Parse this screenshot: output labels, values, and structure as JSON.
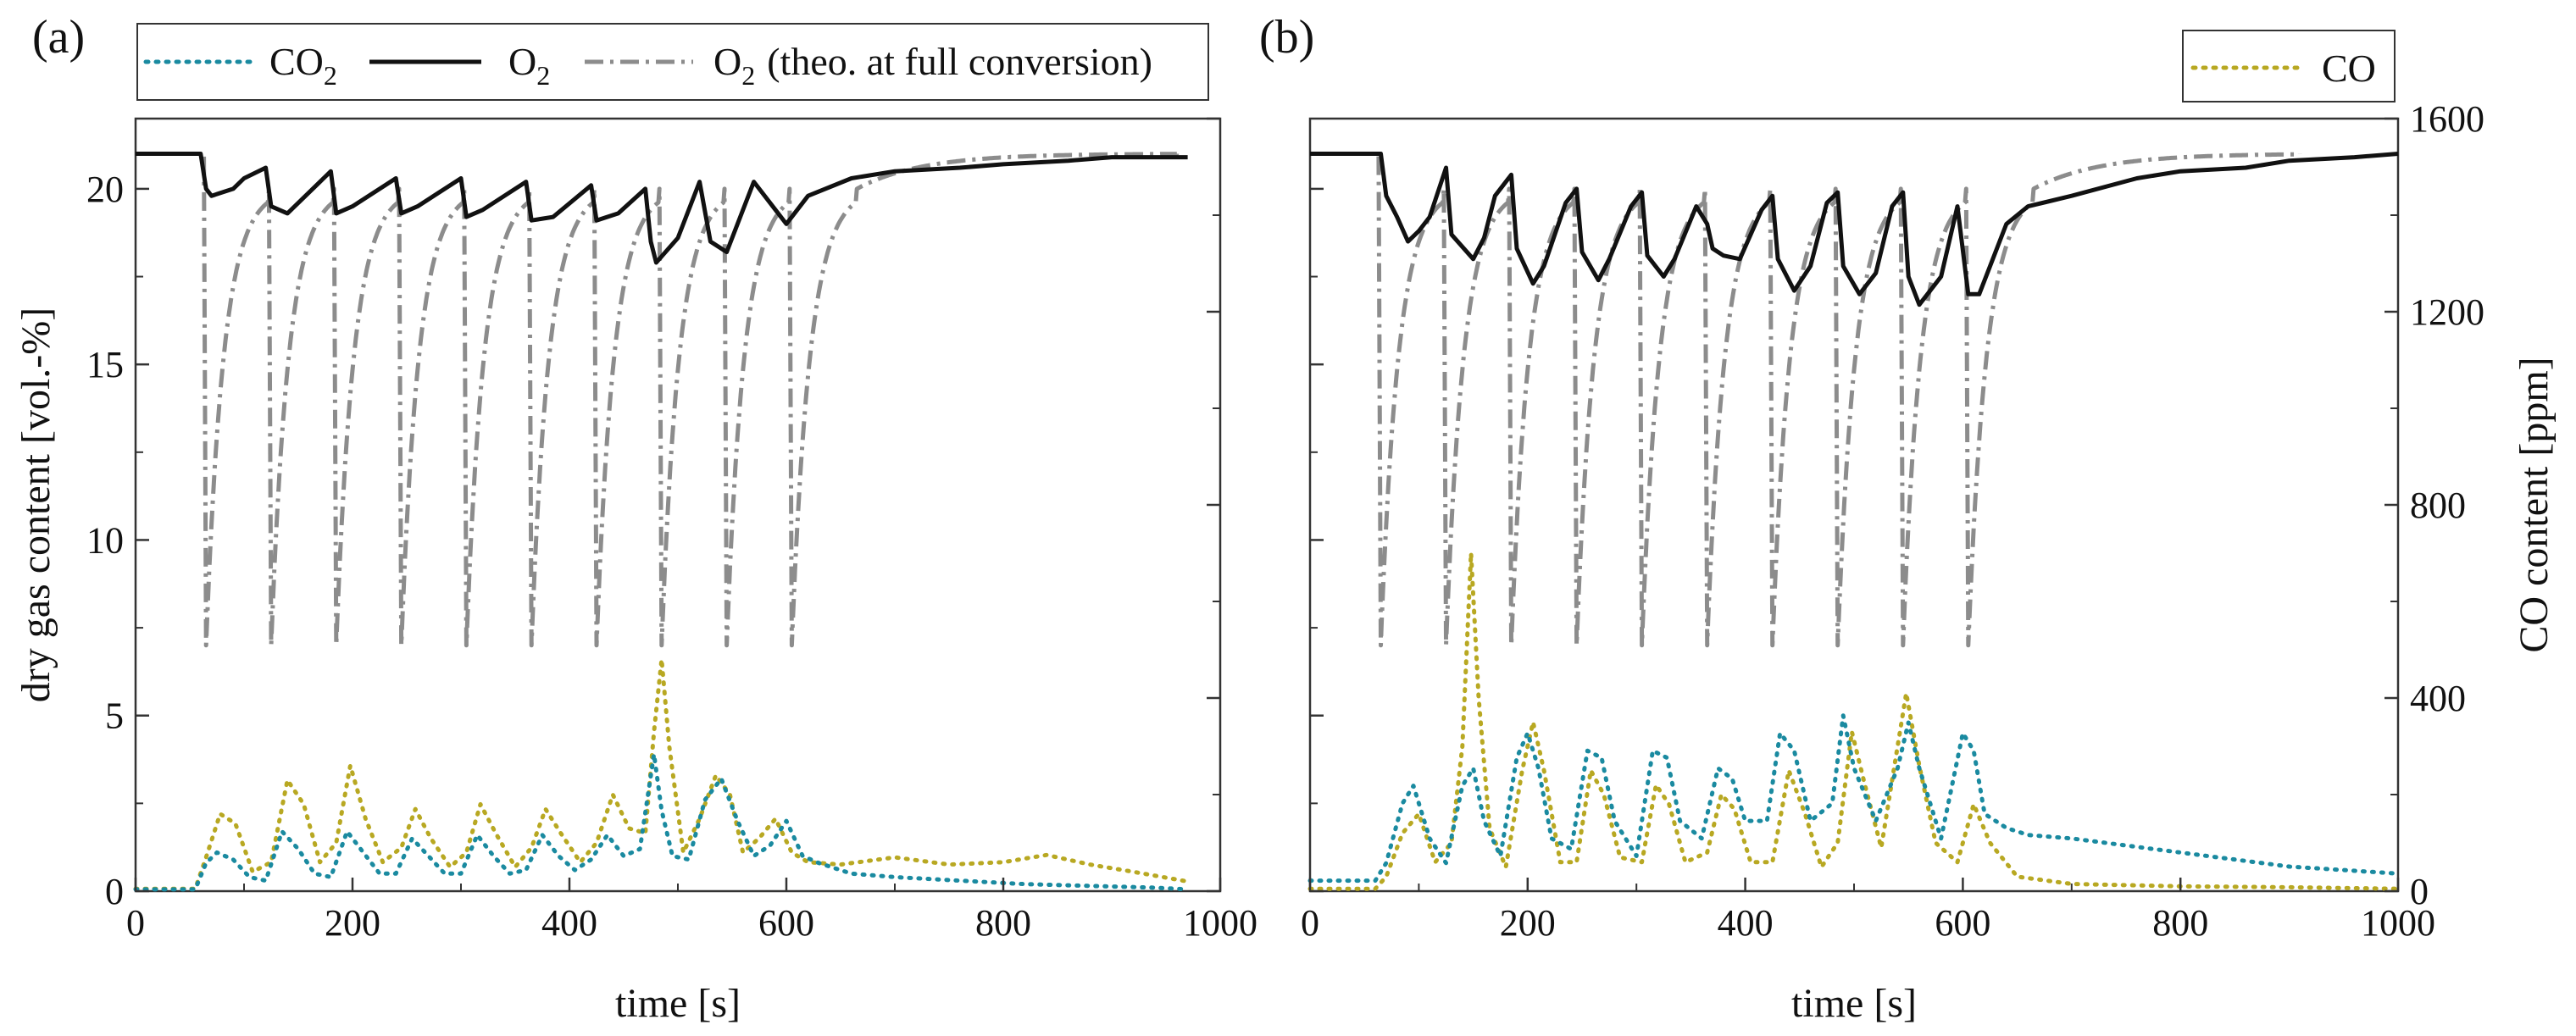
{
  "colors": {
    "co2": "#1a8aa0",
    "o2": "#111111",
    "o2_theo": "#8c8c8c",
    "co": "#b8a822",
    "frame": "#333333"
  },
  "legend": {
    "co2_main": "CO",
    "co2_sub": "2",
    "o2_main": "O",
    "o2_sub": "2",
    "theo_main": "O",
    "theo_sub": "2",
    "theo_note": "(theo. at full conversion)",
    "co_label": "CO"
  },
  "chart_data": [
    {
      "panel": "(a)",
      "type": "line",
      "xlabel": "time [s]",
      "ylabel": "dry gas content [vol.-%]",
      "xlim": [
        0,
        1000
      ],
      "ylim": [
        0,
        22
      ],
      "xticks": [
        "0",
        "200",
        "400",
        "600",
        "800",
        "1000"
      ],
      "yticks": [
        "0",
        "5",
        "10",
        "15",
        "20"
      ],
      "y2lim": [
        0,
        1600
      ],
      "series": [
        {
          "name": "O2",
          "key": "o2",
          "x": [
            0,
            60,
            65,
            70,
            90,
            100,
            120,
            125,
            140,
            180,
            185,
            200,
            240,
            245,
            260,
            300,
            305,
            320,
            360,
            365,
            385,
            420,
            425,
            445,
            470,
            475,
            480,
            500,
            520,
            530,
            545,
            570,
            590,
            600,
            620,
            660,
            700,
            760,
            800,
            860,
            900,
            970
          ],
          "y": [
            21.0,
            21.0,
            20.0,
            19.8,
            20.0,
            20.3,
            20.6,
            19.5,
            19.3,
            20.5,
            19.3,
            19.5,
            20.3,
            19.3,
            19.5,
            20.3,
            19.2,
            19.4,
            20.2,
            19.1,
            19.2,
            20.1,
            19.1,
            19.3,
            20.0,
            18.5,
            17.9,
            18.6,
            20.2,
            18.5,
            18.2,
            20.2,
            19.4,
            19.0,
            19.8,
            20.3,
            20.5,
            20.6,
            20.7,
            20.8,
            20.9,
            20.9
          ]
        },
        {
          "name": "O2 (theo. at full conversion)",
          "key": "o2_theo",
          "cycle_starts": [
            65,
            125,
            185,
            245,
            305,
            365,
            425,
            485,
            545,
            605
          ],
          "baseline": 21.0,
          "min": 7.0,
          "end_x": 960
        },
        {
          "name": "CO2",
          "key": "co2",
          "x": [
            0,
            55,
            65,
            75,
            90,
            105,
            120,
            135,
            150,
            165,
            180,
            195,
            210,
            225,
            240,
            255,
            270,
            285,
            300,
            315,
            330,
            345,
            360,
            375,
            390,
            405,
            420,
            435,
            450,
            465,
            478,
            485,
            495,
            510,
            525,
            540,
            555,
            570,
            585,
            600,
            615,
            630,
            660,
            700,
            760,
            820,
            880,
            940,
            970
          ],
          "y": [
            0.05,
            0.05,
            0.8,
            1.1,
            0.9,
            0.4,
            0.3,
            1.7,
            1.2,
            0.5,
            0.4,
            1.7,
            1.1,
            0.5,
            0.5,
            1.5,
            1.0,
            0.5,
            0.5,
            1.6,
            1.0,
            0.5,
            0.6,
            1.6,
            1.0,
            0.6,
            0.9,
            1.6,
            1.0,
            1.2,
            3.9,
            2.3,
            1.0,
            0.9,
            2.6,
            3.2,
            2.0,
            1.0,
            1.3,
            2.0,
            1.0,
            0.8,
            0.5,
            0.4,
            0.3,
            0.2,
            0.15,
            0.1,
            0.05
          ]
        },
        {
          "name": "CO",
          "key": "co",
          "axis": "right",
          "x": [
            0,
            55,
            65,
            78,
            92,
            108,
            125,
            140,
            155,
            170,
            185,
            198,
            212,
            228,
            245,
            258,
            272,
            290,
            305,
            318,
            332,
            350,
            365,
            378,
            392,
            410,
            425,
            440,
            455,
            470,
            478,
            485,
            492,
            505,
            520,
            535,
            548,
            560,
            575,
            590,
            605,
            620,
            650,
            700,
            750,
            800,
            840,
            880,
            920,
            970
          ],
          "y": [
            5,
            5,
            70,
            160,
            140,
            40,
            60,
            230,
            180,
            60,
            100,
            260,
            150,
            60,
            90,
            170,
            110,
            50,
            80,
            180,
            120,
            50,
            90,
            170,
            120,
            60,
            100,
            200,
            130,
            120,
            330,
            480,
            300,
            80,
            150,
            240,
            200,
            80,
            110,
            150,
            80,
            60,
            55,
            70,
            55,
            60,
            75,
            55,
            40,
            20
          ]
        }
      ]
    },
    {
      "panel": "(b)",
      "type": "line",
      "xlabel": "time [s]",
      "ylabel": "",
      "y2label": "CO content [ppm]",
      "xlim": [
        0,
        1000
      ],
      "ylim": [
        0,
        22
      ],
      "xticks": [
        "0",
        "200",
        "400",
        "600",
        "800",
        "1000"
      ],
      "y2lim": [
        0,
        1600
      ],
      "y2ticks": [
        "0",
        "400",
        "800",
        "1200",
        "1600"
      ],
      "series": [
        {
          "name": "O2",
          "key": "o2",
          "x": [
            0,
            65,
            70,
            80,
            90,
            100,
            110,
            125,
            130,
            150,
            160,
            170,
            185,
            190,
            205,
            215,
            235,
            245,
            250,
            265,
            275,
            295,
            305,
            310,
            325,
            335,
            355,
            365,
            370,
            380,
            395,
            415,
            425,
            430,
            445,
            460,
            475,
            485,
            490,
            505,
            520,
            535,
            545,
            550,
            560,
            580,
            595,
            605,
            615,
            640,
            660,
            700,
            760,
            800,
            860,
            900,
            960,
            1000
          ],
          "y": [
            21.0,
            21.0,
            19.8,
            19.2,
            18.5,
            18.8,
            19.2,
            20.6,
            18.7,
            18.0,
            18.6,
            19.8,
            20.4,
            18.3,
            17.3,
            17.8,
            19.6,
            20.0,
            18.2,
            17.4,
            18.0,
            19.5,
            19.9,
            18.1,
            17.5,
            18.0,
            19.5,
            19.0,
            18.3,
            18.1,
            18.0,
            19.4,
            19.8,
            18.0,
            17.1,
            17.8,
            19.6,
            19.9,
            17.8,
            17.0,
            17.6,
            19.5,
            19.9,
            17.5,
            16.7,
            17.5,
            19.5,
            17.0,
            17.0,
            19.0,
            19.5,
            19.8,
            20.3,
            20.5,
            20.6,
            20.8,
            20.9,
            21.0
          ]
        },
        {
          "name": "O2 (theo. at full conversion)",
          "key": "o2_theo",
          "cycle_starts": [
            65,
            125,
            185,
            245,
            305,
            365,
            425,
            485,
            545,
            605
          ],
          "baseline": 21.0,
          "min": 7.0,
          "end_x": 910
        },
        {
          "name": "CO2",
          "key": "co2",
          "x": [
            0,
            60,
            70,
            85,
            95,
            110,
            125,
            140,
            150,
            160,
            175,
            190,
            200,
            210,
            222,
            240,
            255,
            268,
            280,
            300,
            315,
            328,
            340,
            360,
            375,
            388,
            400,
            420,
            432,
            445,
            460,
            480,
            490,
            500,
            520,
            540,
            550,
            560,
            580,
            600,
            610,
            620,
            640,
            660,
            700,
            750,
            800,
            850,
            900,
            950,
            1000
          ],
          "y": [
            0.3,
            0.3,
            0.8,
            2.5,
            3.0,
            1.5,
            0.8,
            3.0,
            3.5,
            2.0,
            1.0,
            3.8,
            4.5,
            3.5,
            1.5,
            1.2,
            4.0,
            3.8,
            2.0,
            1.0,
            4.0,
            3.8,
            2.0,
            1.5,
            3.5,
            3.2,
            2.0,
            2.0,
            4.5,
            4.0,
            2.0,
            2.5,
            5.0,
            3.5,
            2.0,
            3.5,
            4.8,
            3.5,
            1.5,
            4.5,
            4.0,
            2.2,
            1.8,
            1.6,
            1.5,
            1.3,
            1.1,
            0.9,
            0.7,
            0.6,
            0.5
          ]
        },
        {
          "name": "CO",
          "key": "co",
          "axis": "right",
          "x": [
            0,
            60,
            70,
            85,
            100,
            115,
            130,
            140,
            148,
            155,
            165,
            180,
            195,
            205,
            215,
            230,
            245,
            258,
            270,
            285,
            305,
            318,
            330,
            345,
            365,
            378,
            390,
            405,
            425,
            440,
            455,
            470,
            485,
            498,
            510,
            525,
            540,
            548,
            560,
            575,
            595,
            610,
            625,
            650,
            700,
            800,
            900,
            1000
          ],
          "y": [
            5,
            5,
            30,
            120,
            160,
            60,
            100,
            300,
            700,
            400,
            130,
            50,
            250,
            350,
            250,
            60,
            60,
            250,
            200,
            70,
            60,
            220,
            180,
            60,
            80,
            200,
            170,
            60,
            60,
            250,
            160,
            50,
            100,
            330,
            220,
            90,
            300,
            410,
            260,
            100,
            60,
            180,
            100,
            30,
            15,
            10,
            8,
            5
          ]
        }
      ]
    }
  ]
}
